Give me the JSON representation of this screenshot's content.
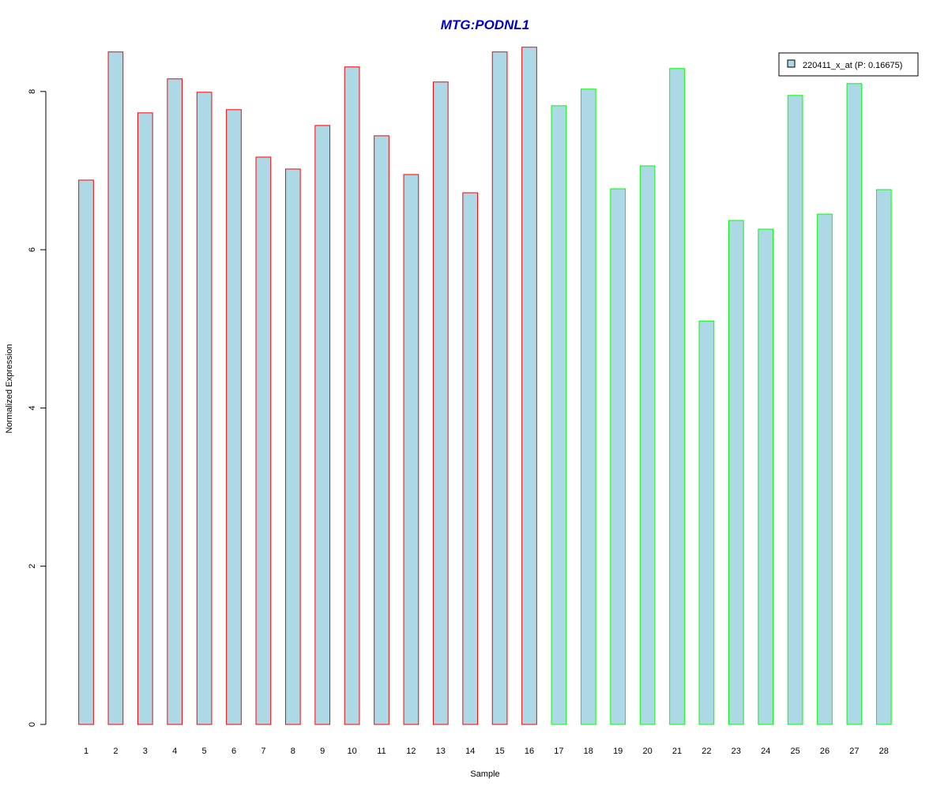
{
  "chart_data": {
    "type": "bar",
    "title": "MTG:PODNL1",
    "xlabel": "Sample",
    "ylabel": "Normalized Expression",
    "categories": [
      "1",
      "2",
      "3",
      "4",
      "5",
      "6",
      "7",
      "8",
      "9",
      "10",
      "11",
      "12",
      "13",
      "14",
      "15",
      "16",
      "17",
      "18",
      "19",
      "20",
      "21",
      "22",
      "23",
      "24",
      "25",
      "26",
      "27",
      "28"
    ],
    "series": [
      {
        "name": "220411_x_at (P: 0.16675)",
        "values": [
          6.88,
          8.5,
          7.73,
          8.16,
          7.99,
          7.77,
          7.17,
          7.02,
          7.57,
          8.31,
          7.44,
          6.95,
          8.12,
          6.72,
          8.5,
          8.56,
          7.82,
          8.03,
          6.77,
          7.06,
          8.29,
          5.1,
          6.37,
          6.26,
          7.95,
          6.45,
          8.1,
          6.76
        ]
      }
    ],
    "bar_border_colors": [
      "#ff0000",
      "#ff0000",
      "#ff0000",
      "#ff0000",
      "#ff0000",
      "#ff0000",
      "#ff0000",
      "#ff0000",
      "#ff0000",
      "#ff0000",
      "#ff0000",
      "#ff0000",
      "#ff0000",
      "#ff0000",
      "#ff0000",
      "#ff0000",
      "#00ff00",
      "#00ff00",
      "#00ff00",
      "#00ff00",
      "#00ff00",
      "#00ff00",
      "#00ff00",
      "#00ff00",
      "#00ff00",
      "#00ff00",
      "#00ff00",
      "#00ff00"
    ],
    "bar_fill_color": "#add8e6",
    "title_color": "#0000cc",
    "yticks": [
      0,
      2,
      4,
      6,
      8
    ],
    "ylim": [
      0,
      8.6
    ],
    "grid": false,
    "legend_position": "top-right"
  }
}
